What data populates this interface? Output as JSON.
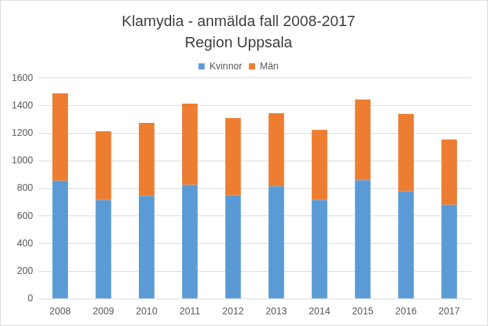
{
  "chart_data": {
    "type": "bar",
    "title": "Klamydia - anmälda fall 2008-2017",
    "subtitle": "Region Uppsala",
    "categories": [
      "2008",
      "2009",
      "2010",
      "2011",
      "2012",
      "2013",
      "2014",
      "2015",
      "2016",
      "2017"
    ],
    "series": [
      {
        "name": "Kvinnor",
        "color": "#5b9bd5",
        "values": [
          855,
          715,
          745,
          825,
          750,
          815,
          715,
          860,
          780,
          680
        ]
      },
      {
        "name": "Män",
        "color": "#ed7d31",
        "values": [
          635,
          500,
          530,
          590,
          560,
          530,
          510,
          585,
          560,
          475
        ]
      }
    ],
    "stacked": true,
    "ylim": [
      0,
      1600
    ],
    "yticks": [
      0,
      200,
      400,
      600,
      800,
      1000,
      1200,
      1400,
      1600
    ],
    "grid": true,
    "legend": "top"
  }
}
